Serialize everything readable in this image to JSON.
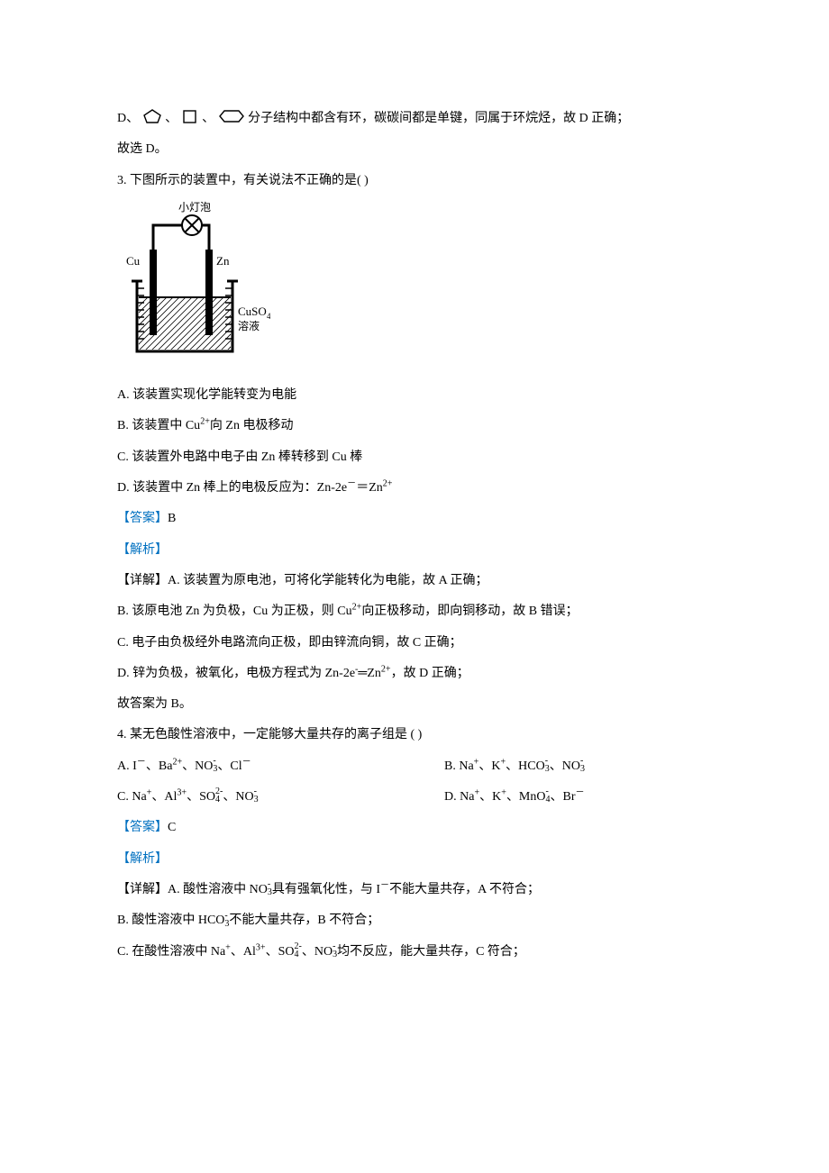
{
  "p2": {
    "line1_prefix": "D、",
    "line1_suffix": "分子结构中都含有环，碳碳间都是单键，同属于环烷烃，故 D 正确；",
    "line2": "故选 D。"
  },
  "q3": {
    "stem": "3. 下图所示的装置中，有关说法不正确的是(   )",
    "diagram": {
      "width": 170,
      "height": 180,
      "bulb_label": "小灯泡",
      "left_label": "Cu",
      "right_label": "Zn",
      "solution_line1": "CuSO",
      "solution_sub": "4",
      "solution_line2": "溶液",
      "stroke": "#000000",
      "bg": "#ffffff",
      "hatch": "#000000"
    },
    "A": "A. 该装置实现化学能转变为电能",
    "B_pre": "B. 该装置中 Cu",
    "B_sup": "2+",
    "B_post": "向 Zn 电极移动",
    "C": "C. 该装置外电路中电子由 Zn 棒转移到 Cu 棒",
    "D_pre": "D. 该装置中 Zn 棒上的电极反应为：Zn-2e",
    "D_sup1": "－",
    "D_eq": "＝",
    "D_zn": "Zn",
    "D_sup2": "2+",
    "answer_label": "【答案】",
    "answer_val": "B",
    "jiexi": "【解析】",
    "detail_A": "【详解】A. 该装置为原电池，可将化学能转化为电能，故 A 正确；",
    "detail_B_pre": "B. 该原电池 Zn 为负极，Cu 为正极，则 Cu",
    "detail_B_sup": "2+",
    "detail_B_post": "向正极移动，即向铜移动，故 B 错误；",
    "detail_C": "C. 电子由负极经外电路流向正极，即由锌流向铜，故 C 正确；",
    "detail_D_pre": "D. 锌为负极，被氧化，电极方程式为 Zn-2e",
    "detail_D_sup1": "-",
    "detail_D_eq": "═",
    "detail_D_zn": "Zn",
    "detail_D_sup2": "2+",
    "detail_D_post": "，故 D 正确；",
    "detail_end": "故答案为 B。"
  },
  "q4": {
    "stem": "4. 某无色酸性溶液中，一定能够大量共存的离子组是   (      )",
    "A": {
      "pre": "A. I",
      "s1": "－",
      "sep1": "、Ba",
      "s2": "2+",
      "sep2": "、NO",
      "stack_top": "-",
      "stack_bot": "3",
      "sep3": "、Cl",
      "s3": "－"
    },
    "B": {
      "pre": "B. Na",
      "s1": "+",
      "sep1": "、K",
      "s2": "+",
      "sep2": "、HCO",
      "stack1_top": "-",
      "stack1_bot": "3",
      "sep3": "、NO",
      "stack2_top": "-",
      "stack2_bot": "3"
    },
    "C": {
      "pre": "C. Na",
      "s1": "+",
      "sep1": "、Al",
      "s2": "3+",
      "sep2": "、SO",
      "stack1_top": "2-",
      "stack1_bot": "4",
      "sep3": "、NO",
      "stack2_top": "-",
      "stack2_bot": "3"
    },
    "D": {
      "pre": "D. Na",
      "s1": "+",
      "sep1": "、K",
      "s2": "+",
      "sep2": "、MnO",
      "stack1_top": "-",
      "stack1_bot": "4",
      "sep3": "、Br",
      "s3": "－"
    },
    "answer_label": "【答案】",
    "answer_val": "C",
    "jiexi": "【解析】",
    "detail_A_pre": "【详解】A. 酸性溶液中 NO",
    "detail_A_stack_top": "-",
    "detail_A_stack_bot": "3",
    "detail_A_mid": "具有强氧化性，与 I",
    "detail_A_sup": "－",
    "detail_A_post": "不能大量共存，A 不符合；",
    "detail_B_pre": "B. 酸性溶液中 HCO",
    "detail_B_stack_top": "-",
    "detail_B_stack_bot": "3",
    "detail_B_post": "不能大量共存，B 不符合；",
    "detail_C_pre": "C. 在酸性溶液中 Na",
    "detail_C_s1": "+",
    "detail_C_sep1": "、Al",
    "detail_C_s2": "3+",
    "detail_C_sep2": "、SO",
    "detail_C_stack1_top": "2-",
    "detail_C_stack1_bot": "4",
    "detail_C_sep3": "、NO",
    "detail_C_stack2_top": "-",
    "detail_C_stack2_bot": "3",
    "detail_C_post": "均不反应，能大量共存，C 符合；"
  }
}
